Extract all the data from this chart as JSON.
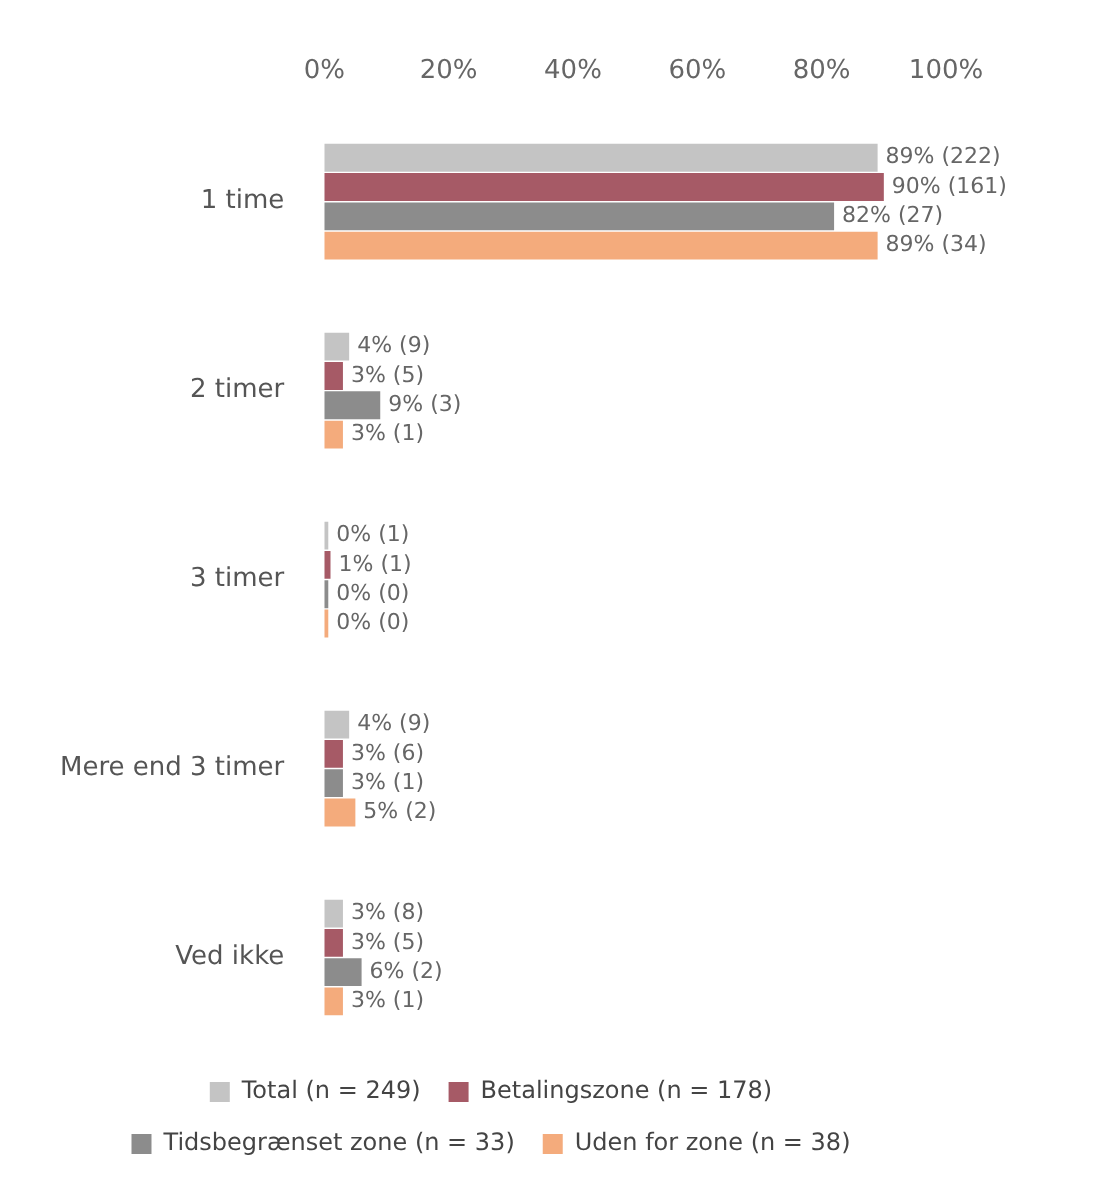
{
  "chart_data": {
    "type": "bar",
    "orientation": "horizontal",
    "categories": [
      "1 time",
      "2 timer",
      "3 timer",
      "Mere end 3 timer",
      "Ved ikke"
    ],
    "series": [
      {
        "name": "Total (n = 249)",
        "color": "#c4c4c4",
        "values": [
          89,
          4,
          0,
          4,
          3
        ],
        "value_labels": [
          "89% (222)",
          "4% (9)",
          "0% (1)",
          "4% (9)",
          "3% (8)"
        ]
      },
      {
        "name": "Betalingszone (n = 178)",
        "color": "#a65a66",
        "values": [
          90,
          3,
          1,
          3,
          3
        ],
        "value_labels": [
          "90% (161)",
          "3% (5)",
          "1% (1)",
          "3% (6)",
          "3% (5)"
        ]
      },
      {
        "name": "Tidsbegrænset zone (n = 33)",
        "color": "#8c8c8c",
        "values": [
          82,
          9,
          0,
          3,
          6
        ],
        "value_labels": [
          "82% (27)",
          "9% (3)",
          "0% (0)",
          "3% (1)",
          "6% (2)"
        ]
      },
      {
        "name": "Uden for zone (n = 38)",
        "color": "#f4ab7c",
        "values": [
          89,
          3,
          0,
          5,
          3
        ],
        "value_labels": [
          "89% (34)",
          "3% (1)",
          "0% (0)",
          "5% (2)",
          "3% (1)"
        ]
      }
    ],
    "xlim": [
      0,
      100
    ],
    "xticks": [
      {
        "value": 0,
        "label": "0%"
      },
      {
        "value": 20,
        "label": "20%"
      },
      {
        "value": 40,
        "label": "40%"
      },
      {
        "value": 60,
        "label": "60%"
      },
      {
        "value": 80,
        "label": "80%"
      },
      {
        "value": 100,
        "label": "100%"
      }
    ],
    "grid": false,
    "legend": "bottom"
  }
}
